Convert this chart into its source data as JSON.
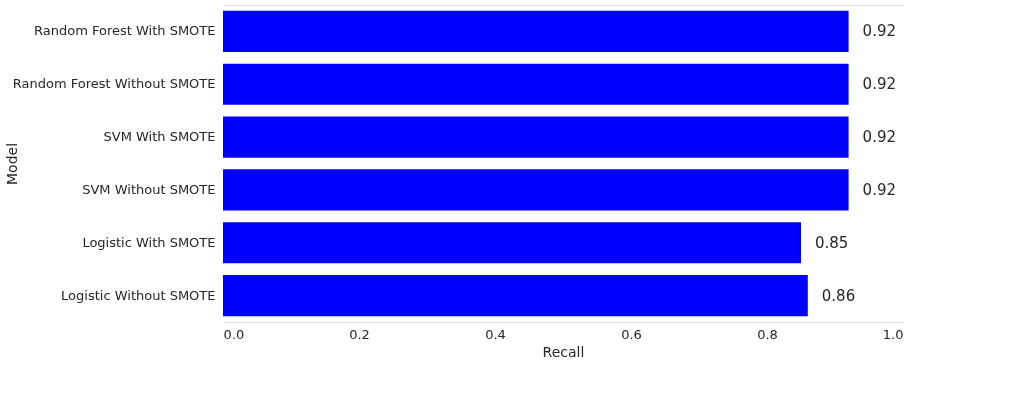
{
  "chart_data": {
    "type": "bar",
    "orientation": "horizontal",
    "xlabel": "Recall",
    "ylabel": "Model",
    "categories": [
      "Random Forest With SMOTE",
      "Random Forest Without SMOTE",
      "SVM With SMOTE",
      "SVM Without SMOTE",
      "Logistic With SMOTE",
      "Logistic Without SMOTE"
    ],
    "values": [
      0.92,
      0.92,
      0.92,
      0.92,
      0.85,
      0.86
    ],
    "color": "#0000ff",
    "xlim": [
      0.0,
      1.0
    ],
    "xticks": [
      {
        "value": 0,
        "label": "0.0"
      },
      {
        "value": 0.2,
        "label": "0.2"
      },
      {
        "value": 0.4,
        "label": "0.4"
      },
      {
        "value": 0.6,
        "label": "0.6"
      },
      {
        "value": 0.8,
        "label": "0.8"
      },
      {
        "value": 1,
        "label": "1.0"
      }
    ],
    "grid": true,
    "data_labels": true
  }
}
